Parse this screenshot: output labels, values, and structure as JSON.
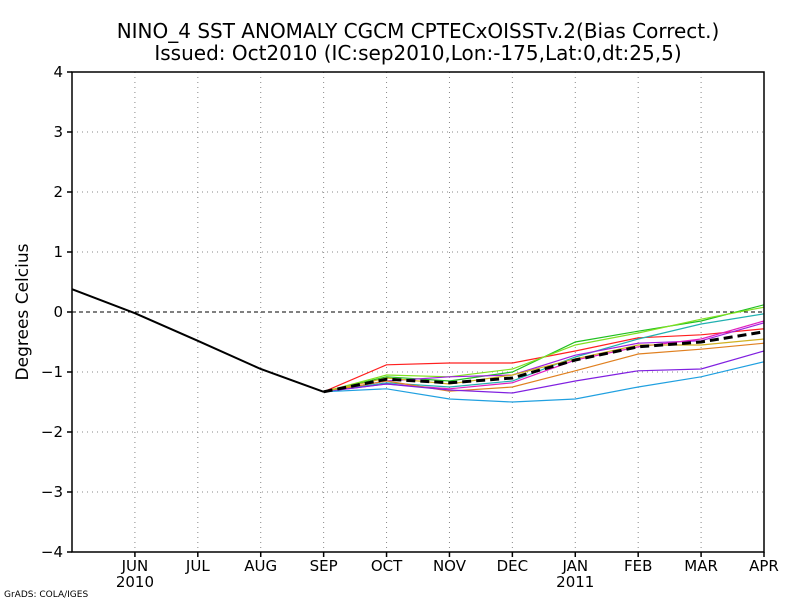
{
  "chart_data": {
    "type": "line",
    "title": "NINO_4 SST ANOMALY CGCM CPTECxOISSTv.2(Bias Correct.)",
    "subtitle": "Issued:  Oct2010 (IC:sep2010,Lon:-175,Lat:0,dt:25,5)",
    "ylabel": "Degrees Celcius",
    "xlabel": "",
    "ylim": [
      -4,
      4
    ],
    "yticks": [
      4,
      3,
      2,
      1,
      0,
      -1,
      -2,
      -3,
      -4
    ],
    "ytick_labels": [
      "4",
      "3",
      "2",
      "1",
      "0",
      "−1",
      "−2",
      "−3",
      "−4"
    ],
    "xlim": [
      0,
      11
    ],
    "xticks": [
      1,
      2,
      3,
      4,
      5,
      6,
      7,
      8,
      9,
      10,
      11
    ],
    "xtick_labels": [
      "JUN",
      "JUL",
      "AUG",
      "SEP",
      "OCT",
      "NOV",
      "DEC",
      "JAN",
      "FEB",
      "MAR",
      "APR"
    ],
    "year_labels": [
      {
        "x": 1,
        "label": "2010"
      },
      {
        "x": 8,
        "label": "2011"
      }
    ],
    "grid": true,
    "reference_line": 0,
    "observed": {
      "name": "Observed",
      "color": "#000000",
      "x": [
        0,
        1,
        2,
        3,
        4
      ],
      "values": [
        0.38,
        -0.02,
        -0.48,
        -0.95,
        -1.33
      ]
    },
    "ensemble_mean": {
      "name": "Ensemble mean",
      "color": "#000000",
      "x": [
        4,
        5,
        6,
        7,
        8,
        9,
        10,
        11
      ],
      "values": [
        -1.33,
        -1.12,
        -1.18,
        -1.1,
        -0.8,
        -0.58,
        -0.5,
        -0.33
      ]
    },
    "members": [
      {
        "name": "member-red",
        "color": "#ff2020",
        "x": [
          4,
          5,
          6,
          7,
          8,
          9,
          10,
          11
        ],
        "values": [
          -1.33,
          -0.88,
          -0.85,
          -0.85,
          -0.65,
          -0.43,
          -0.38,
          -0.28
        ]
      },
      {
        "name": "member-green",
        "color": "#20c020",
        "x": [
          4,
          5,
          6,
          7,
          8,
          9,
          10,
          11
        ],
        "values": [
          -1.33,
          -1.08,
          -1.15,
          -1.0,
          -0.5,
          -0.32,
          -0.15,
          0.12
        ]
      },
      {
        "name": "member-lime",
        "color": "#80e020",
        "x": [
          4,
          5,
          6,
          7,
          8,
          9,
          10,
          11
        ],
        "values": [
          -1.33,
          -1.05,
          -1.08,
          -0.95,
          -0.55,
          -0.35,
          -0.12,
          0.08
        ]
      },
      {
        "name": "member-teal",
        "color": "#20b0b0",
        "x": [
          4,
          5,
          6,
          7,
          8,
          9,
          10,
          11
        ],
        "values": [
          -1.33,
          -1.18,
          -1.25,
          -1.15,
          -0.75,
          -0.45,
          -0.2,
          -0.03
        ]
      },
      {
        "name": "member-violet",
        "color": "#a020e0",
        "x": [
          4,
          5,
          6,
          7,
          8,
          9,
          10,
          11
        ],
        "values": [
          -1.33,
          -1.15,
          -1.08,
          -1.05,
          -0.72,
          -0.52,
          -0.48,
          -0.18
        ]
      },
      {
        "name": "member-magenta",
        "color": "#e020c0",
        "x": [
          4,
          5,
          6,
          7,
          8,
          9,
          10,
          11
        ],
        "values": [
          -1.33,
          -1.2,
          -1.28,
          -1.18,
          -0.8,
          -0.58,
          -0.45,
          -0.15
        ]
      },
      {
        "name": "member-orange",
        "color": "#e08020",
        "x": [
          4,
          5,
          6,
          7,
          8,
          9,
          10,
          11
        ],
        "values": [
          -1.33,
          -1.15,
          -1.32,
          -1.25,
          -0.98,
          -0.7,
          -0.62,
          -0.52
        ]
      },
      {
        "name": "member-purple",
        "color": "#8020e0",
        "x": [
          4,
          5,
          6,
          7,
          8,
          9,
          10,
          11
        ],
        "values": [
          -1.33,
          -1.2,
          -1.3,
          -1.35,
          -1.15,
          -0.98,
          -0.95,
          -0.65
        ]
      },
      {
        "name": "member-sky",
        "color": "#20a0e0",
        "x": [
          4,
          5,
          6,
          7,
          8,
          9,
          10,
          11
        ],
        "values": [
          -1.33,
          -1.28,
          -1.45,
          -1.5,
          -1.45,
          -1.25,
          -1.08,
          -0.83
        ]
      },
      {
        "name": "member-gold",
        "color": "#d0b020",
        "x": [
          4,
          5,
          6,
          7,
          8,
          9,
          10,
          11
        ],
        "values": [
          -1.33,
          -1.1,
          -1.2,
          -1.05,
          -0.78,
          -0.55,
          -0.55,
          -0.45
        ]
      }
    ]
  },
  "footer": {
    "credit": "GrADS: COLA/IGES"
  }
}
